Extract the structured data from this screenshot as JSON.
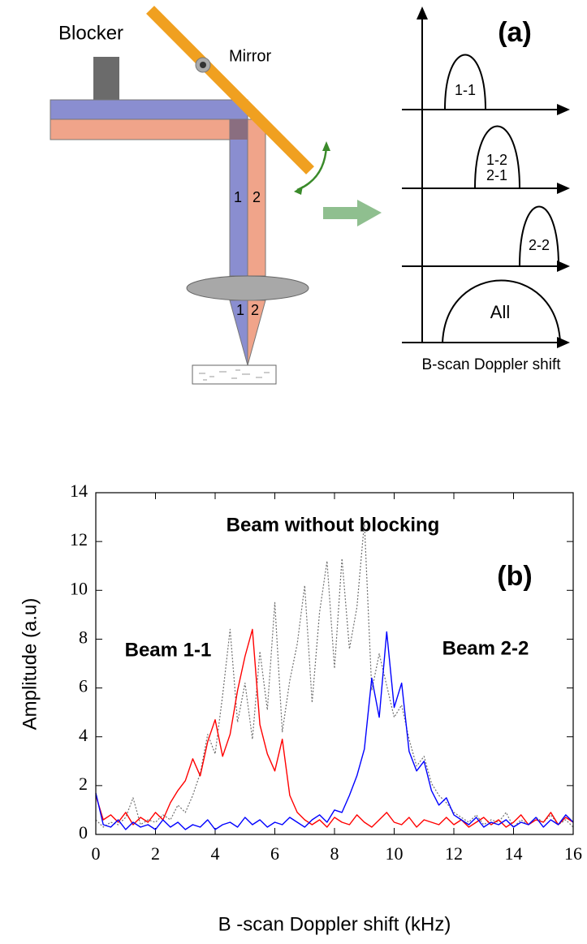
{
  "diagram": {
    "panel_label": "(a)",
    "blocker": "Blocker",
    "mirror": "Mirror",
    "beam_labels_top": [
      "1",
      "2"
    ],
    "beam_labels_bottom": [
      "1",
      "2"
    ],
    "peaks": [
      {
        "labels": [
          "1-1"
        ]
      },
      {
        "labels": [
          "1-2",
          "2-1"
        ]
      },
      {
        "labels": [
          "2-2"
        ]
      },
      {
        "labels": [
          "All"
        ]
      }
    ],
    "axis_label": "B-scan Doppler shift"
  },
  "chart_data": {
    "type": "line",
    "panel_label": "(b)",
    "xlabel": "B -scan Doppler shift (kHz)",
    "ylabel": "Amplitude (a.u)",
    "xlim": [
      0,
      16
    ],
    "ylim": [
      0,
      14
    ],
    "xticks": [
      0,
      2,
      4,
      6,
      8,
      10,
      12,
      14,
      16
    ],
    "yticks": [
      0,
      2,
      4,
      6,
      8,
      10,
      12,
      14
    ],
    "x": [
      0,
      0.25,
      0.5,
      0.75,
      1,
      1.25,
      1.5,
      1.75,
      2,
      2.25,
      2.5,
      2.75,
      3,
      3.25,
      3.5,
      3.75,
      4,
      4.25,
      4.5,
      4.75,
      5,
      5.25,
      5.5,
      5.75,
      6,
      6.25,
      6.5,
      6.75,
      7,
      7.25,
      7.5,
      7.75,
      8,
      8.25,
      8.5,
      8.75,
      9,
      9.25,
      9.5,
      9.75,
      10,
      10.25,
      10.5,
      10.75,
      11,
      11.25,
      11.5,
      11.75,
      12,
      12.25,
      12.5,
      12.75,
      13,
      13.25,
      13.5,
      13.75,
      14,
      14.25,
      14.5,
      14.75,
      15,
      15.25,
      15.5,
      15.75,
      16
    ],
    "series": [
      {
        "name": "Beam 1-1",
        "color": "#ff0000",
        "style": "solid",
        "values": [
          1.6,
          0.6,
          0.8,
          0.5,
          0.9,
          0.4,
          0.7,
          0.5,
          0.9,
          0.6,
          1.3,
          1.8,
          2.2,
          3.1,
          2.4,
          3.8,
          4.7,
          3.2,
          4.1,
          5.9,
          7.3,
          8.4,
          4.5,
          3.3,
          2.6,
          3.9,
          1.6,
          0.9,
          0.6,
          0.4,
          0.6,
          0.3,
          0.7,
          0.5,
          0.4,
          0.8,
          0.5,
          0.3,
          0.6,
          0.9,
          0.5,
          0.4,
          0.7,
          0.3,
          0.6,
          0.5,
          0.4,
          0.7,
          0.4,
          0.6,
          0.3,
          0.5,
          0.7,
          0.4,
          0.6,
          0.3,
          0.5,
          0.8,
          0.4,
          0.6,
          0.5,
          0.9,
          0.4,
          0.7,
          0.5
        ]
      },
      {
        "name": "Beam 2-2",
        "color": "#0000ff",
        "style": "solid",
        "values": [
          1.7,
          0.4,
          0.3,
          0.6,
          0.2,
          0.5,
          0.3,
          0.4,
          0.2,
          0.6,
          0.3,
          0.5,
          0.2,
          0.4,
          0.3,
          0.6,
          0.2,
          0.4,
          0.5,
          0.3,
          0.7,
          0.4,
          0.6,
          0.3,
          0.5,
          0.4,
          0.7,
          0.5,
          0.3,
          0.6,
          0.8,
          0.5,
          1.0,
          0.9,
          1.6,
          2.4,
          3.5,
          6.4,
          4.8,
          8.3,
          5.2,
          6.2,
          3.4,
          2.6,
          3.0,
          1.8,
          1.2,
          1.5,
          0.8,
          0.6,
          0.4,
          0.7,
          0.3,
          0.5,
          0.4,
          0.6,
          0.3,
          0.5,
          0.4,
          0.7,
          0.3,
          0.6,
          0.4,
          0.8,
          0.5
        ]
      },
      {
        "name": "Beam without blocking",
        "color": "#707070",
        "style": "dotted",
        "values": [
          0.6,
          0.3,
          0.5,
          0.4,
          0.7,
          1.5,
          0.4,
          0.6,
          0.5,
          0.8,
          0.6,
          1.2,
          0.9,
          1.6,
          2.5,
          4.1,
          3.3,
          5.7,
          8.4,
          4.6,
          6.2,
          3.9,
          7.5,
          5.1,
          9.5,
          4.2,
          6.3,
          7.8,
          10.2,
          5.4,
          9.1,
          11.2,
          6.8,
          11.3,
          7.6,
          9.3,
          12.8,
          5.9,
          7.4,
          6.1,
          4.8,
          5.3,
          3.9,
          2.8,
          3.2,
          2.1,
          1.6,
          1.3,
          0.9,
          0.7,
          0.5,
          0.8,
          0.4,
          0.6,
          0.5,
          0.9,
          0.3,
          0.6,
          0.4,
          0.7,
          0.5,
          0.8,
          0.4,
          0.6,
          0.3
        ]
      }
    ]
  }
}
